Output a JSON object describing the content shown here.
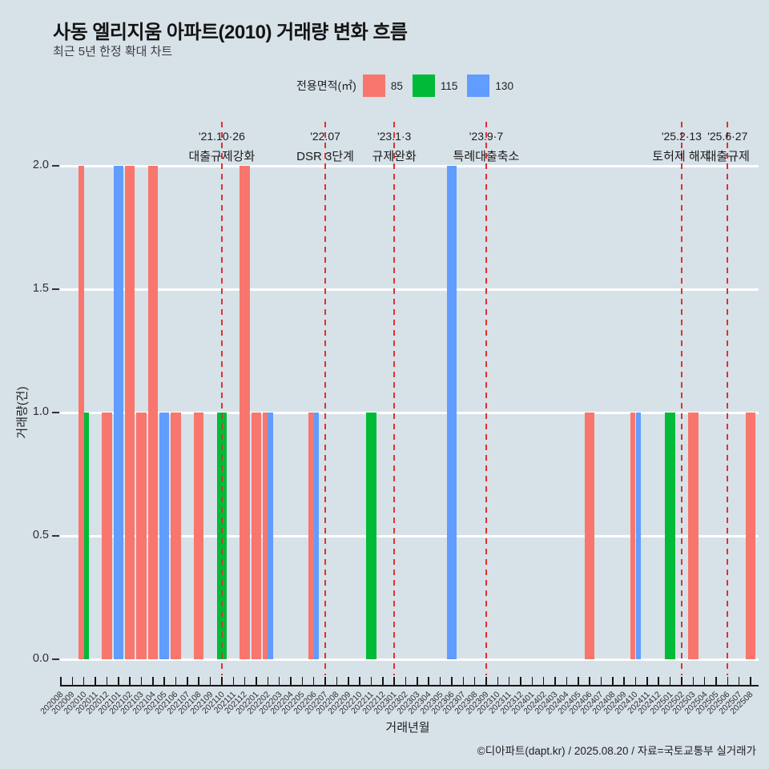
{
  "title": "사동 엘리지움 아파트(2010) 거래량 변화 흐름",
  "subtitle": "최근 5년 한정 확대 차트",
  "legend": {
    "title": "전용면적(㎡)",
    "items": [
      {
        "label": "85",
        "color": "#F8766D"
      },
      {
        "label": "115",
        "color": "#00BA38"
      },
      {
        "label": "130",
        "color": "#619CFF"
      }
    ]
  },
  "x_axis_title": "거래년월",
  "y_axis_title": "거래량(건)",
  "footer": "©디아파트(dapt.kr) / 2025.08.20 / 자료=국토교통부 실거래가",
  "chart_data": {
    "type": "bar",
    "categories": [
      "202008",
      "202009",
      "202010",
      "202011",
      "202012",
      "202101",
      "202102",
      "202103",
      "202104",
      "202105",
      "202106",
      "202107",
      "202108",
      "202109",
      "202110",
      "202111",
      "202112",
      "202201",
      "202202",
      "202203",
      "202204",
      "202205",
      "202206",
      "202207",
      "202208",
      "202209",
      "202210",
      "202211",
      "202212",
      "202301",
      "202302",
      "202303",
      "202304",
      "202305",
      "202306",
      "202307",
      "202308",
      "202309",
      "202310",
      "202311",
      "202312",
      "202401",
      "202402",
      "202403",
      "202404",
      "202405",
      "202406",
      "202407",
      "202408",
      "202409",
      "202410",
      "202411",
      "202412",
      "202501",
      "202502",
      "202503",
      "202504",
      "202505",
      "202506",
      "202507",
      "202508"
    ],
    "series": [
      {
        "name": "85",
        "color": "#F8766D",
        "points": {
          "202010": 2,
          "202012": 1,
          "202102": 2,
          "202103": 1,
          "202104": 2,
          "202106": 1,
          "202108": 1,
          "202112": 2,
          "202201": 1,
          "202202": 1,
          "202206": 1,
          "202406": 1,
          "202410": 1,
          "202503": 1,
          "202508": 1
        }
      },
      {
        "name": "115",
        "color": "#00BA38",
        "points": {
          "202010": 1,
          "202110": 1,
          "202211": 1,
          "202501": 1
        }
      },
      {
        "name": "130",
        "color": "#619CFF",
        "points": {
          "202101": 2,
          "202105": 1,
          "202202": 1,
          "202206": 1,
          "202306": 2,
          "202410": 1
        }
      }
    ],
    "ylim": [
      0,
      2
    ],
    "yticks": [
      "0.0",
      "0.5",
      "1.0",
      "1.5",
      "2.0"
    ],
    "grid": "horizontal major gridlines, white on light blue-gray panel",
    "legend_position": "top",
    "vline_color": "#E03131",
    "vlines": [
      {
        "month": "202110",
        "date": "'21.10·26",
        "label": "대출규제강화"
      },
      {
        "month": "202207",
        "date": "'22.07",
        "label": "DSR 3단계"
      },
      {
        "month": "202301",
        "date": "'23.1·3",
        "label": "규제완화"
      },
      {
        "month": "202309",
        "date": "'23.9·7",
        "label": "특례대출축소"
      },
      {
        "month": "202502",
        "date": "'25.2·13",
        "label": "토허제 해제"
      },
      {
        "month": "202506",
        "date": "'25.6·27",
        "label": "대출규제"
      }
    ]
  }
}
